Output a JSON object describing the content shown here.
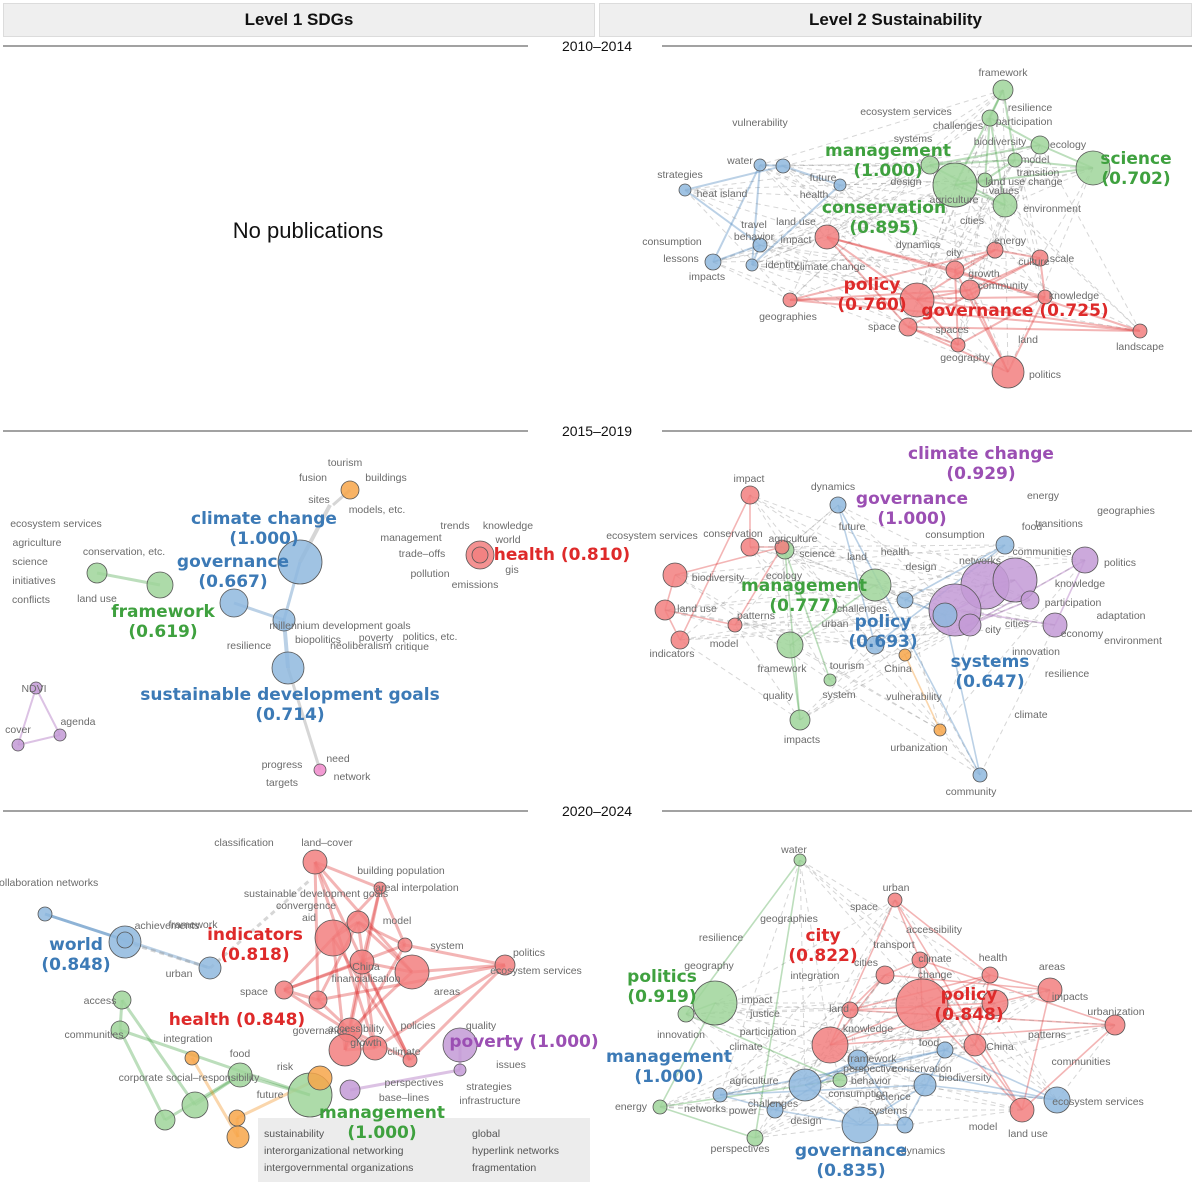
{
  "headers": {
    "left": "Level 1 SDGs",
    "right": "Level 2 Sustainability"
  },
  "periods": [
    "2010–2014",
    "2015–2019",
    "2020–2024"
  ],
  "no_publications": "No publications",
  "colors": {
    "blue": "#3c7ab6",
    "green": "#3fa13f",
    "red": "#de2a2a",
    "purple": "#9b4fb3",
    "orange": "#f08a12",
    "pink": "#e066b0",
    "grey": "#8a8a8a"
  },
  "panels": {
    "p1_right": {
      "small_labels": [
        "framework",
        "resilience",
        "ecosystem services",
        "participation",
        "challenges",
        "ecology",
        "systems",
        "biodiversity",
        "vulnerability",
        "model",
        "water",
        "transition",
        "strategies",
        "future",
        "land use change",
        "heat island",
        "design",
        "values",
        "health",
        "agriculture",
        "environment",
        "travel",
        "land use",
        "cities",
        "behavior",
        "impact",
        "dynamics",
        "energy",
        "consumption",
        "city",
        "culture",
        "lessons",
        "identity",
        "climate change",
        "growth",
        "scale",
        "impacts",
        "community",
        "knowledge",
        "geographies",
        "space",
        "spaces",
        "land",
        "landscape",
        "geography",
        "politics"
      ],
      "big_labels": [
        {
          "text": "management",
          "score": "(1.000)",
          "color": "green"
        },
        {
          "text": "science",
          "score": "(0.702)",
          "color": "green"
        },
        {
          "text": "conservation",
          "score": "(0.895)",
          "color": "green"
        },
        {
          "text": "policy",
          "score": "(0.760)",
          "color": "red"
        },
        {
          "text": "governance (0.725)",
          "score": "",
          "color": "red"
        }
      ]
    },
    "p2_left": {
      "small_labels": [
        "tourism",
        "fusion",
        "buildings",
        "sites",
        "models, etc.",
        "ecosystem services",
        "agriculture",
        "science",
        "initiatives",
        "conflicts",
        "conservation, etc.",
        "land use",
        "trends",
        "knowledge",
        "management",
        "world",
        "trade–offs",
        "gis",
        "pollution",
        "emissions",
        "millennium development goals",
        "neoliberalism",
        "critique",
        "resilience",
        "biopolitics",
        "poverty",
        "politics, etc.",
        "NDVI",
        "agenda",
        "cover",
        "need",
        "progress",
        "network",
        "targets"
      ],
      "big_labels": [
        {
          "text": "climate change",
          "score": "(1.000)",
          "color": "blue"
        },
        {
          "text": "governance",
          "score": "(0.667)",
          "color": "blue"
        },
        {
          "text": "framework",
          "score": "(0.619)",
          "color": "green"
        },
        {
          "text": "health (0.810)",
          "score": "",
          "color": "red"
        },
        {
          "text": "sustainable development goals",
          "score": "(0.714)",
          "color": "blue"
        }
      ]
    },
    "p2_right": {
      "small_labels": [
        "impact",
        "dynamics",
        "energy",
        "geographies",
        "ecosystem services",
        "conservation",
        "agriculture",
        "future",
        "consumption",
        "food",
        "transitions",
        "science",
        "land",
        "health",
        "design",
        "networks",
        "communities",
        "politics",
        "biodiversity",
        "ecology",
        "knowledge",
        "land use",
        "patterns",
        "participation",
        "adaptation",
        "challenges",
        "urban",
        "cities",
        "city",
        "economy",
        "environment",
        "model",
        "indicators",
        "innovation",
        "framework",
        "tourism",
        "China",
        "resilience",
        "quality",
        "system",
        "vulnerability",
        "climate",
        "impacts",
        "urbanization",
        "community"
      ],
      "big_labels": [
        {
          "text": "climate change",
          "score": "(0.929)",
          "color": "purple"
        },
        {
          "text": "governance",
          "score": "(1.000)",
          "color": "purple"
        },
        {
          "text": "management",
          "score": "(0.777)",
          "color": "green"
        },
        {
          "text": "policy",
          "score": "(0.693)",
          "color": "blue"
        },
        {
          "text": "systems",
          "score": "(0.647)",
          "color": "blue"
        }
      ]
    },
    "p3_left": {
      "small_labels": [
        "classification",
        "land–cover",
        "collaboration networks",
        "building population",
        "areal interpolation",
        "sustainable development goals",
        "convergence",
        "aid",
        "framework",
        "achievements",
        "model",
        "system",
        "politics",
        "ecosystem services",
        "urban",
        "China",
        "financialisation",
        "space",
        "areas",
        "access",
        "accessibility",
        "growth",
        "policies",
        "quality",
        "communities",
        "governance",
        "climate",
        "integration",
        "food",
        "risk",
        "issues",
        "perspectives",
        "corporate social–responsibility",
        "future",
        "base–lines",
        "strategies",
        "infrastructure"
      ],
      "legend_left": [
        "sustainability",
        "interorganizational networking",
        "intergovernmental organizations"
      ],
      "legend_right": [
        "global",
        "hyperlink networks",
        "fragmentation"
      ],
      "big_labels": [
        {
          "text": "world",
          "score": "(0.848)",
          "color": "blue"
        },
        {
          "text": "indicators",
          "score": "(0.818)",
          "color": "red"
        },
        {
          "text": "health (0.848)",
          "score": "",
          "color": "red"
        },
        {
          "text": "poverty (1.000)",
          "score": "",
          "color": "purple"
        },
        {
          "text": "management",
          "score": "(1.000)",
          "color": "green"
        }
      ]
    },
    "p3_right": {
      "small_labels": [
        "water",
        "urban",
        "space",
        "geographies",
        "accessibility",
        "resilience",
        "transport",
        "health",
        "geography",
        "cities",
        "climate",
        "areas",
        "change",
        "integration",
        "impacts",
        "urbanization",
        "impact",
        "land",
        "justice",
        "knowledge",
        "patterns",
        "innovation",
        "participation",
        "food",
        "China",
        "communities",
        "climate",
        "framework",
        "perspective",
        "conservation",
        "biodiversity",
        "agriculture",
        "behavior",
        "consumption",
        "challenges",
        "science",
        "energy",
        "networks",
        "power",
        "design",
        "systems",
        "ecosystem services",
        "model",
        "land use",
        "perspectives",
        "dynamics"
      ],
      "big_labels": [
        {
          "text": "city",
          "score": "(0.822)",
          "color": "red"
        },
        {
          "text": "politics",
          "score": "(0.919)",
          "color": "green"
        },
        {
          "text": "policy",
          "score": "(0.848)",
          "color": "red"
        },
        {
          "text": "management",
          "score": "(1.000)",
          "color": "blue"
        },
        {
          "text": "governance",
          "score": "(0.835)",
          "color": "blue"
        }
      ]
    }
  }
}
